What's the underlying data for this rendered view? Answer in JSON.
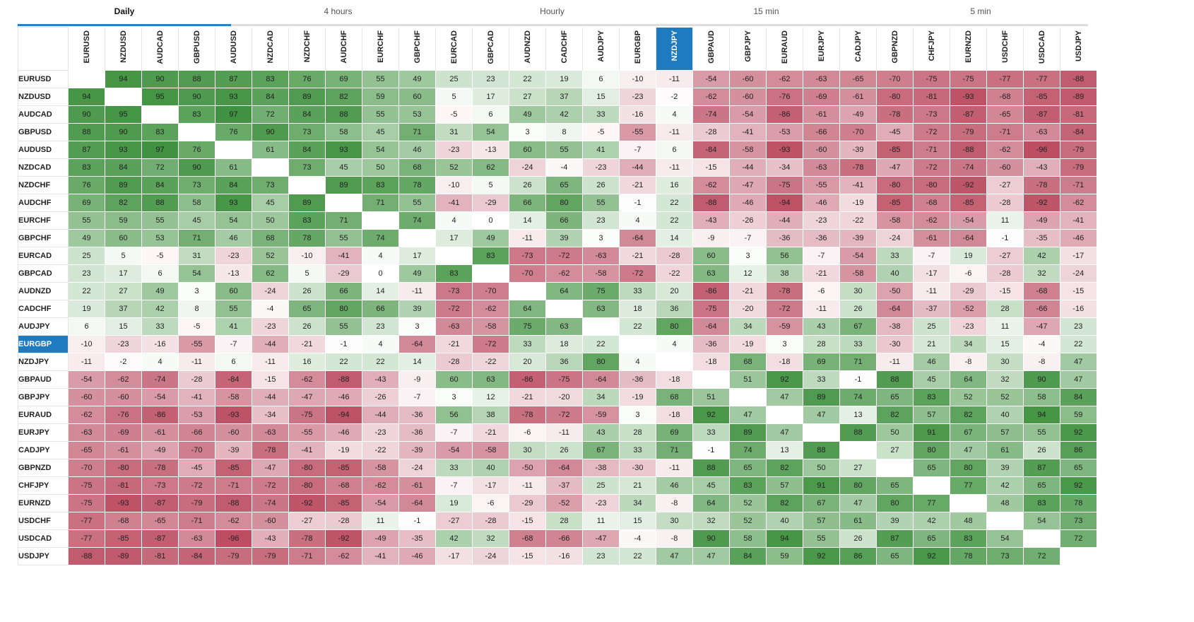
{
  "tabs": [
    {
      "label": "Daily",
      "active": true
    },
    {
      "label": "4 hours",
      "active": false
    },
    {
      "label": "Hourly",
      "active": false
    },
    {
      "label": "15 min",
      "active": false
    },
    {
      "label": "5 min",
      "active": false
    }
  ],
  "highlight": "EURGBP",
  "highlight_col": "NZDJPY",
  "colors": {
    "positive": "#3a8f3a",
    "negative": "#b9465c",
    "neutral": "#ffffff",
    "highlight": "#1f7bc0"
  },
  "pairs": [
    "EURUSD",
    "NZDUSD",
    "AUDCAD",
    "GBPUSD",
    "AUDUSD",
    "NZDCAD",
    "NZDCHF",
    "AUDCHF",
    "EURCHF",
    "GBPCHF",
    "EURCAD",
    "GBPCAD",
    "AUDNZD",
    "CADCHF",
    "AUDJPY",
    "EURGBP",
    "NZDJPY",
    "GBPAUD",
    "GBPJPY",
    "EURAUD",
    "EURJPY",
    "CADJPY",
    "GBPNZD",
    "CHFJPY",
    "EURNZD",
    "USDCHF",
    "USDCAD",
    "USDJPY"
  ],
  "matrix": [
    [
      null,
      94,
      90,
      88,
      87,
      83,
      76,
      69,
      55,
      49,
      25,
      23,
      22,
      19,
      6,
      -10,
      -11,
      -54,
      -60,
      -62,
      -63,
      -65,
      -70,
      -75,
      -75,
      -77,
      -77,
      -88
    ],
    [
      94,
      null,
      95,
      90,
      93,
      84,
      89,
      82,
      59,
      60,
      5,
      17,
      27,
      37,
      15,
      -23,
      -2,
      -62,
      -60,
      -76,
      -69,
      -61,
      -80,
      -81,
      -93,
      -68,
      -85,
      -89
    ],
    [
      90,
      95,
      null,
      83,
      97,
      72,
      84,
      88,
      55,
      53,
      -5,
      6,
      49,
      42,
      33,
      -16,
      4,
      -74,
      -54,
      -86,
      -61,
      -49,
      -78,
      -73,
      -87,
      -65,
      -87,
      -81
    ],
    [
      88,
      90,
      83,
      null,
      76,
      90,
      73,
      58,
      45,
      71,
      31,
      54,
      3,
      8,
      -5,
      -55,
      -11,
      -28,
      -41,
      -53,
      -66,
      -70,
      -45,
      -72,
      -79,
      -71,
      -63,
      -84
    ],
    [
      87,
      93,
      97,
      76,
      null,
      61,
      84,
      93,
      54,
      46,
      -23,
      -13,
      60,
      55,
      41,
      -7,
      6,
      -84,
      -58,
      -93,
      -60,
      -39,
      -85,
      -71,
      -88,
      -62,
      -96,
      -79
    ],
    [
      83,
      84,
      72,
      90,
      61,
      null,
      73,
      45,
      50,
      68,
      52,
      62,
      -24,
      -4,
      -23,
      -44,
      -11,
      -15,
      -44,
      -34,
      -63,
      -78,
      -47,
      -72,
      -74,
      -60,
      -43,
      -79
    ],
    [
      76,
      89,
      84,
      73,
      84,
      73,
      null,
      89,
      83,
      78,
      -10,
      5,
      26,
      65,
      26,
      -21,
      16,
      -62,
      -47,
      -75,
      -55,
      -41,
      -80,
      -80,
      -92,
      -27,
      -78,
      -71
    ],
    [
      69,
      82,
      88,
      58,
      93,
      45,
      89,
      null,
      71,
      55,
      -41,
      -29,
      66,
      80,
      55,
      -1,
      22,
      -88,
      -46,
      -94,
      -46,
      -19,
      -85,
      -68,
      -85,
      -28,
      -92,
      -62
    ],
    [
      55,
      59,
      55,
      45,
      54,
      50,
      83,
      71,
      null,
      74,
      4,
      0,
      14,
      66,
      23,
      4,
      22,
      -43,
      -26,
      -44,
      -23,
      -22,
      -58,
      -62,
      -54,
      11,
      -49,
      -41
    ],
    [
      49,
      60,
      53,
      71,
      46,
      68,
      78,
      55,
      74,
      null,
      17,
      49,
      -11,
      39,
      3,
      -64,
      14,
      -9,
      -7,
      -36,
      -36,
      -39,
      -24,
      -61,
      -64,
      -1,
      -35,
      -46
    ],
    [
      25,
      5,
      -5,
      31,
      -23,
      52,
      -10,
      -41,
      4,
      17,
      null,
      83,
      -73,
      -72,
      -63,
      -21,
      -28,
      60,
      3,
      56,
      -7,
      -54,
      33,
      -7,
      19,
      -27,
      42,
      -17
    ],
    [
      23,
      17,
      6,
      54,
      -13,
      62,
      5,
      -29,
      0,
      49,
      83,
      null,
      -70,
      -62,
      -58,
      -72,
      -22,
      63,
      12,
      38,
      -21,
      -58,
      40,
      -17,
      -6,
      -28,
      32,
      -24
    ],
    [
      22,
      27,
      49,
      3,
      60,
      -24,
      26,
      66,
      14,
      -11,
      -73,
      -70,
      null,
      64,
      75,
      33,
      20,
      -86,
      -21,
      -78,
      -6,
      30,
      -50,
      -11,
      -29,
      -15,
      -68,
      -15
    ],
    [
      19,
      37,
      42,
      8,
      55,
      -4,
      65,
      80,
      66,
      39,
      -72,
      -62,
      64,
      null,
      63,
      18,
      36,
      -75,
      -20,
      -72,
      -11,
      26,
      -64,
      -37,
      -52,
      28,
      -66,
      -16
    ],
    [
      6,
      15,
      33,
      -5,
      41,
      -23,
      26,
      55,
      23,
      3,
      -63,
      -58,
      75,
      63,
      null,
      22,
      80,
      -64,
      34,
      -59,
      43,
      67,
      -38,
      25,
      -23,
      11,
      -47,
      23
    ],
    [
      -10,
      -23,
      -16,
      -55,
      -7,
      -44,
      -21,
      -1,
      4,
      -64,
      -21,
      -72,
      33,
      18,
      22,
      null,
      4,
      -36,
      -19,
      3,
      28,
      33,
      -30,
      21,
      34,
      15,
      -4,
      22
    ],
    [
      -11,
      -2,
      4,
      -11,
      6,
      -11,
      16,
      22,
      22,
      14,
      -28,
      -22,
      20,
      36,
      80,
      4,
      null,
      -18,
      68,
      -18,
      69,
      71,
      -11,
      46,
      -8,
      30,
      -8,
      47
    ],
    [
      -54,
      -62,
      -74,
      -28,
      -84,
      -15,
      -62,
      -88,
      -43,
      -9,
      60,
      63,
      -86,
      -75,
      -64,
      -36,
      -18,
      null,
      51,
      92,
      33,
      -1,
      88,
      45,
      64,
      32,
      90,
      47
    ],
    [
      -60,
      -60,
      -54,
      -41,
      -58,
      -44,
      -47,
      -46,
      -26,
      -7,
      3,
      12,
      -21,
      -20,
      34,
      -19,
      68,
      51,
      null,
      47,
      89,
      74,
      65,
      83,
      52,
      52,
      58,
      84
    ],
    [
      -62,
      -76,
      -86,
      -53,
      -93,
      -34,
      -75,
      -94,
      -44,
      -36,
      56,
      38,
      -78,
      -72,
      -59,
      3,
      -18,
      92,
      47,
      null,
      47,
      13,
      82,
      57,
      82,
      40,
      94,
      59
    ],
    [
      -63,
      -69,
      -61,
      -66,
      -60,
      -63,
      -55,
      -46,
      -23,
      -36,
      -7,
      -21,
      -6,
      -11,
      43,
      28,
      69,
      33,
      89,
      47,
      null,
      88,
      50,
      91,
      67,
      57,
      55,
      92
    ],
    [
      -65,
      -61,
      -49,
      -70,
      -39,
      -78,
      -41,
      -19,
      -22,
      -39,
      -54,
      -58,
      30,
      26,
      67,
      33,
      71,
      -1,
      74,
      13,
      88,
      null,
      27,
      80,
      47,
      61,
      26,
      86
    ],
    [
      -70,
      -80,
      -78,
      -45,
      -85,
      -47,
      -80,
      -85,
      -58,
      -24,
      33,
      40,
      -50,
      -64,
      -38,
      -30,
      -11,
      88,
      65,
      82,
      50,
      27,
      null,
      65,
      80,
      39,
      87,
      65
    ],
    [
      -75,
      -81,
      -73,
      -72,
      -71,
      -72,
      -80,
      -68,
      -62,
      -61,
      -7,
      -17,
      -11,
      -37,
      25,
      21,
      46,
      45,
      83,
      57,
      91,
      80,
      65,
      null,
      77,
      42,
      65,
      92
    ],
    [
      -75,
      -93,
      -87,
      -79,
      -88,
      -74,
      -92,
      -85,
      -54,
      -64,
      19,
      -6,
      -29,
      -52,
      -23,
      34,
      -8,
      64,
      52,
      82,
      67,
      47,
      80,
      77,
      null,
      48,
      83,
      78
    ],
    [
      -77,
      -68,
      -65,
      -71,
      -62,
      -60,
      -27,
      -28,
      11,
      -1,
      -27,
      -28,
      -15,
      28,
      11,
      15,
      30,
      32,
      52,
      40,
      57,
      61,
      39,
      42,
      48,
      null,
      54,
      73
    ],
    [
      -77,
      -85,
      -87,
      -63,
      -96,
      -43,
      -78,
      -92,
      -49,
      -35,
      42,
      32,
      -68,
      -66,
      -47,
      -4,
      -8,
      90,
      58,
      94,
      55,
      26,
      87,
      65,
      83,
      54,
      null,
      72
    ],
    [
      -88,
      -89,
      -81,
      -84,
      -79,
      -79,
      -71,
      -62,
      -41,
      -46,
      -17,
      -24,
      -15,
      -16,
      23,
      22,
      47,
      47,
      84,
      59,
      92,
      86,
      65,
      92,
      78,
      73,
      72,
      null
    ]
  ]
}
